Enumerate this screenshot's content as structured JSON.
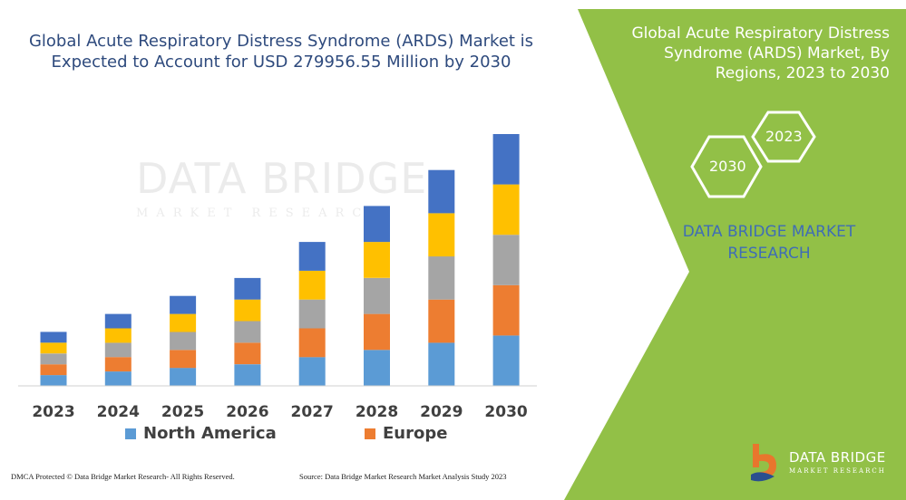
{
  "chart_data": {
    "type": "bar",
    "stacked": true,
    "title": "Global Acute Respiratory Distress Syndrome (ARDS) Market is Expected to Account for USD 279956.55 Million by 2030",
    "categories": [
      "2023",
      "2024",
      "2025",
      "2026",
      "2027",
      "2028",
      "2029",
      "2030"
    ],
    "series": [
      {
        "name": "North America",
        "values": [
          12,
          16,
          20,
          24,
          32,
          40,
          48,
          56
        ],
        "color": "#5b9bd5"
      },
      {
        "name": "Europe",
        "values": [
          12,
          16,
          20,
          24,
          32,
          40,
          48,
          56
        ],
        "color": "#ed7d31"
      },
      {
        "name": "",
        "values": [
          12,
          16,
          20,
          24,
          32,
          40,
          48,
          56
        ],
        "color": "#a5a5a5"
      },
      {
        "name": "",
        "values": [
          12,
          16,
          20,
          24,
          32,
          40,
          48,
          56
        ],
        "color": "#ffc000"
      },
      {
        "name": "",
        "values": [
          12,
          16,
          20,
          24,
          32,
          40,
          48,
          56
        ],
        "color": "#4472c4"
      }
    ],
    "ylim": [
      0,
      280
    ],
    "grid": false,
    "legend_position": "bottom",
    "xlabel": "",
    "ylabel": ""
  },
  "side": {
    "title": "Global Acute Respiratory Distress Syndrome (ARDS) Market, By Regions, 2023 to 2030",
    "hex_left": "2030",
    "hex_right": "2023",
    "brand": "DATA BRIDGE MARKET RESEARCH",
    "logo_line1": "DATA BRIDGE",
    "logo_line2": "MARKET RESEARCH",
    "panel_color": "#92c047"
  },
  "watermark": {
    "line1": "DATA BRIDGE",
    "line2": "MARKET RESEARCH"
  },
  "footer": {
    "left": "DMCA Protected © Data Bridge Market Research- All Rights Reserved.",
    "right": "Source: Data Bridge Market Research Market Analysis Study 2023"
  }
}
